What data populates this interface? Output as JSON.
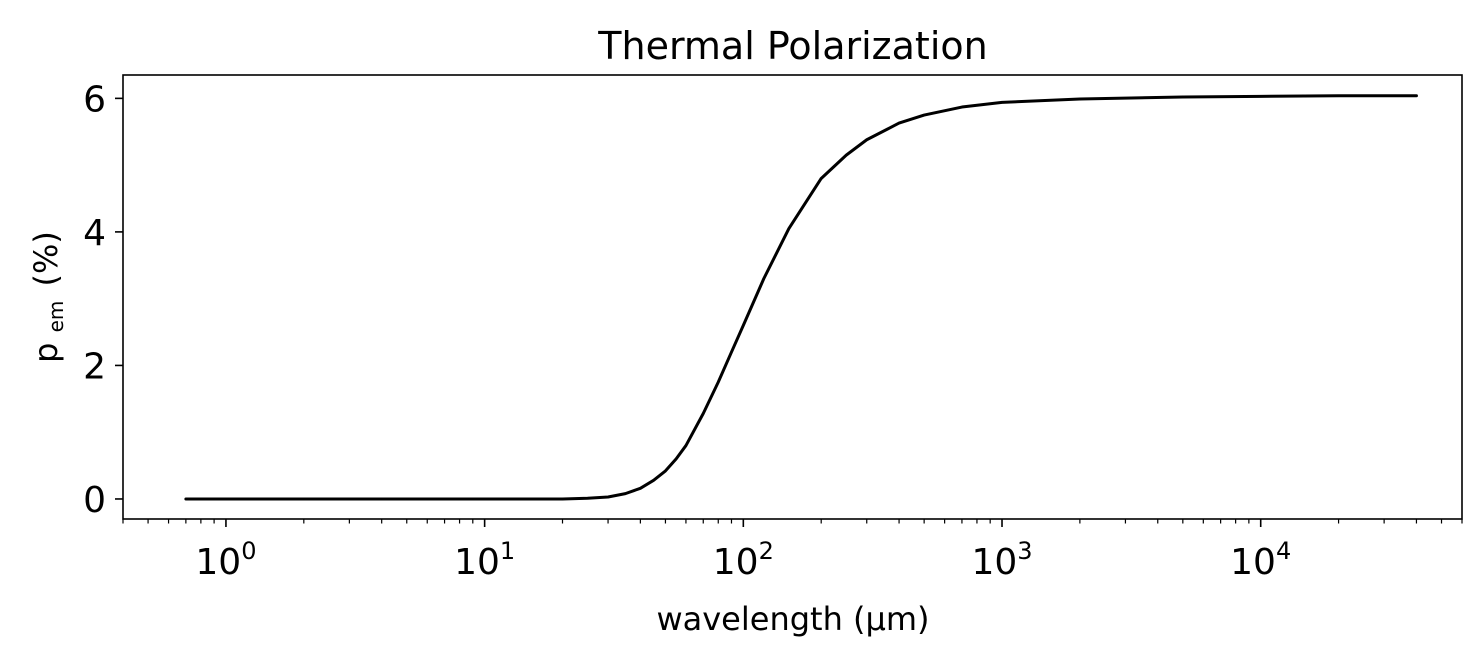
{
  "chart_data": {
    "type": "line",
    "title": "Thermal Polarization",
    "xlabel": "wavelength (μm)",
    "ylabel_base": "p",
    "ylabel_sub": "em",
    "ylabel_unit": "(%)",
    "xscale": "log",
    "xlim": [
      0.4,
      60000
    ],
    "ylim": [
      -0.3,
      6.35
    ],
    "x_ticks": [
      {
        "base": "10",
        "exp": "0",
        "value": 1
      },
      {
        "base": "10",
        "exp": "1",
        "value": 10
      },
      {
        "base": "10",
        "exp": "2",
        "value": 100
      },
      {
        "base": "10",
        "exp": "3",
        "value": 1000
      },
      {
        "base": "10",
        "exp": "4",
        "value": 10000
      }
    ],
    "y_ticks": [
      "0",
      "2",
      "4",
      "6"
    ],
    "grid": false,
    "series": [
      {
        "color": "#000000",
        "x": [
          0.7,
          1,
          2,
          5,
          10,
          15,
          20,
          25,
          30,
          35,
          40,
          45,
          50,
          55,
          60,
          70,
          80,
          90,
          100,
          120,
          150,
          200,
          250,
          300,
          400,
          500,
          700,
          1000,
          2000,
          5000,
          10000,
          20000,
          30000,
          40000
        ],
        "y": [
          0.0,
          0.0,
          0.0,
          0.0,
          0.0,
          0.0,
          0.0,
          0.01,
          0.03,
          0.08,
          0.16,
          0.28,
          0.42,
          0.6,
          0.8,
          1.28,
          1.75,
          2.2,
          2.6,
          3.3,
          4.05,
          4.8,
          5.15,
          5.38,
          5.63,
          5.75,
          5.87,
          5.94,
          5.99,
          6.02,
          6.03,
          6.04,
          6.04,
          6.04
        ]
      }
    ]
  }
}
